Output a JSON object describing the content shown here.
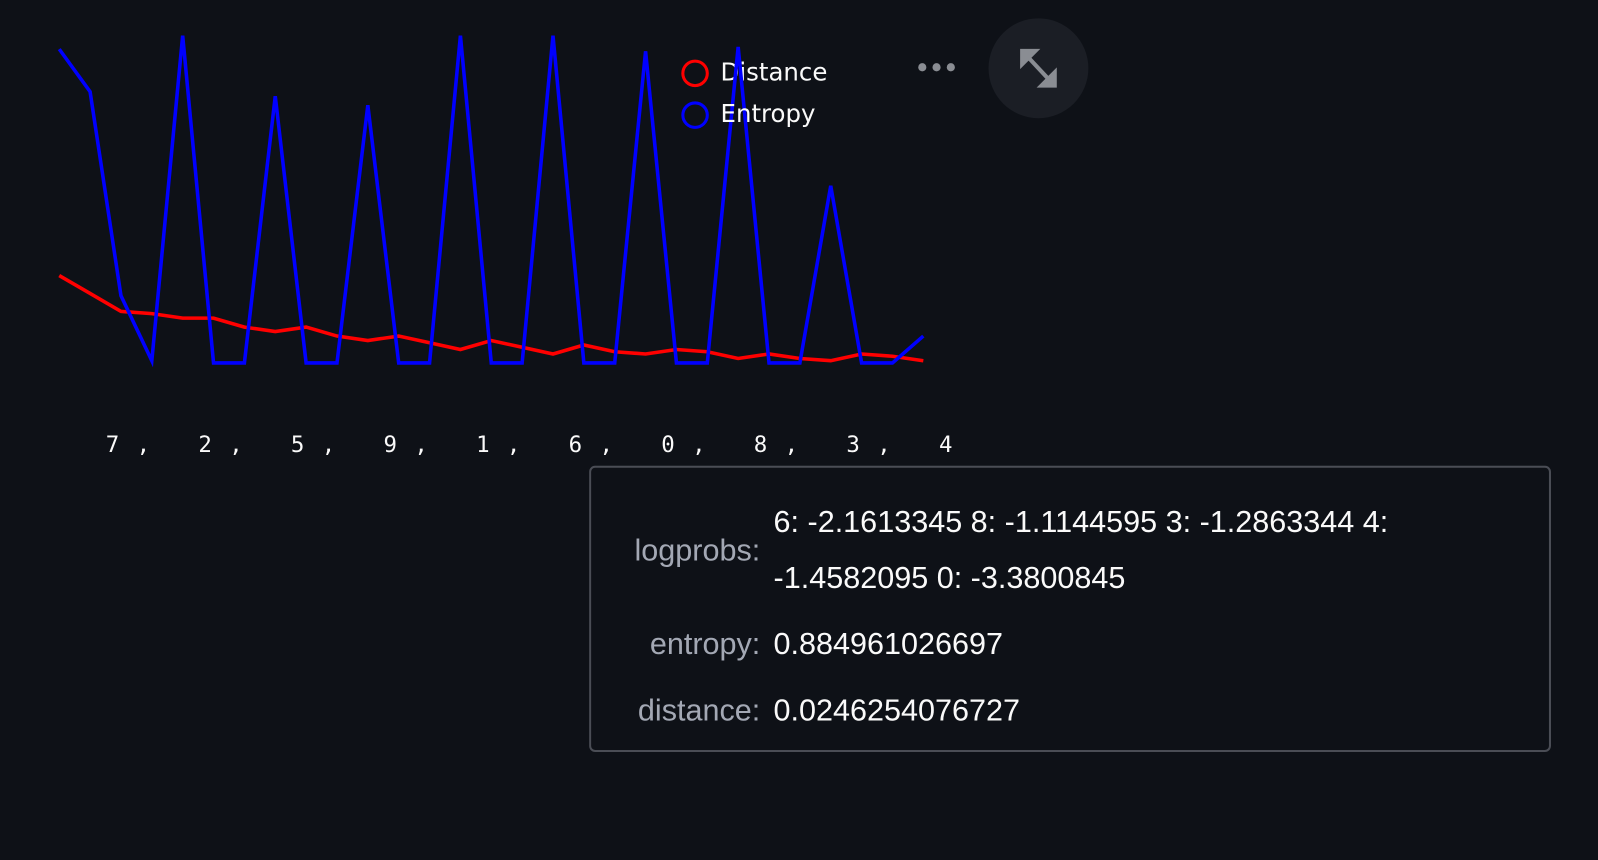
{
  "chart_data": {
    "type": "line",
    "categories": [
      null,
      "7",
      ",",
      null,
      "2",
      ",",
      null,
      "5",
      ",",
      null,
      "9",
      ",",
      null,
      "1",
      ",",
      null,
      "6",
      ",",
      null,
      "0",
      ",",
      null,
      "8",
      ",",
      null,
      "3",
      ",",
      null,
      "4"
    ],
    "series": [
      {
        "name": "Distance",
        "color": "#ff0000",
        "values": [
          0.43,
          0.35,
          0.27,
          0.26,
          0.24,
          0.24,
          0.2,
          0.18,
          0.2,
          0.16,
          0.14,
          0.16,
          0.13,
          0.1,
          0.14,
          0.11,
          0.08,
          0.12,
          0.09,
          0.08,
          0.1,
          0.09,
          0.06,
          0.08,
          0.06,
          0.05,
          0.08,
          0.07,
          0.05
        ]
      },
      {
        "name": "Entropy",
        "color": "#0000ff",
        "values": [
          1.44,
          1.25,
          0.34,
          0.05,
          1.5,
          0.04,
          0.04,
          1.23,
          0.04,
          0.04,
          1.19,
          0.04,
          0.04,
          1.5,
          0.04,
          0.04,
          1.5,
          0.04,
          0.04,
          1.43,
          0.04,
          0.04,
          1.45,
          0.04,
          0.04,
          0.83,
          0.04,
          0.04,
          0.16
        ]
      }
    ],
    "ylim": [
      0,
      1.5
    ]
  },
  "tooltip": {
    "rows": [
      {
        "label": "logprobs:",
        "value": "6: -2.1613345 8: -1.1144595 3: -1.2863344 4: -1.4582095 0: -3.3800845"
      },
      {
        "label": "entropy:",
        "value": "0.884961026697"
      },
      {
        "label": "distance:",
        "value": "0.0246254076727"
      }
    ]
  }
}
